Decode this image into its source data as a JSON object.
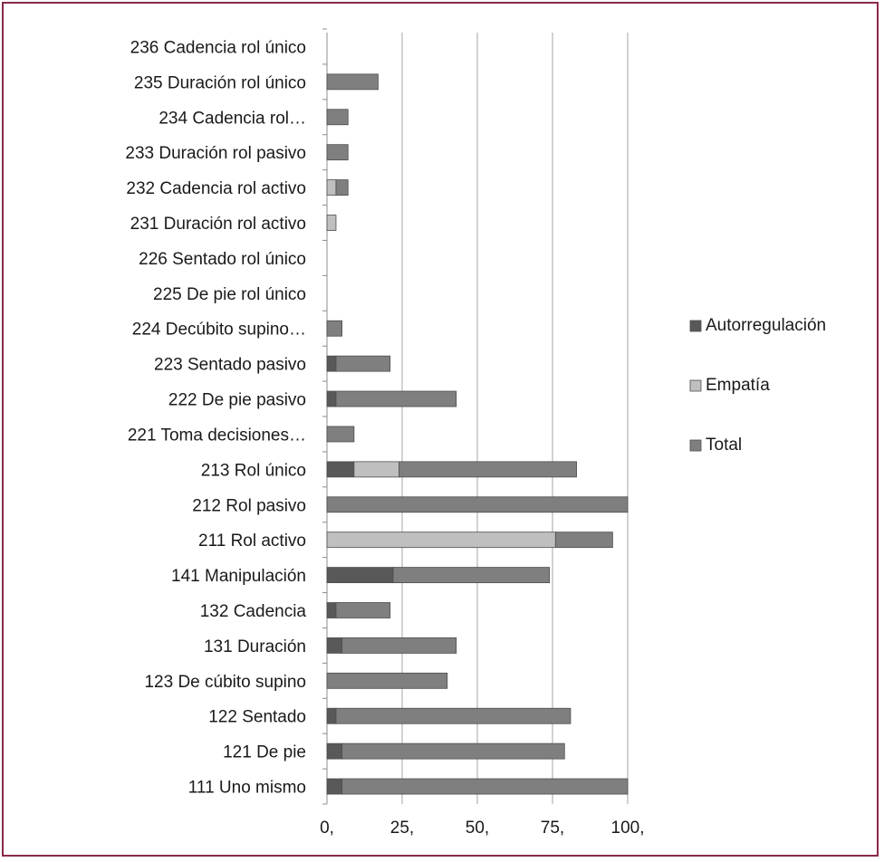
{
  "chart_data": {
    "type": "bar",
    "orientation": "horizontal",
    "stacked": true,
    "categories": [
      "111 Uno mismo",
      "121 De pie",
      "122 Sentado",
      "123 De cúbito supino",
      "131 Duración",
      "132 Cadencia",
      "141 Manipulación",
      "211 Rol activo",
      "212 Rol pasivo",
      "213 Rol único",
      "221 Toma decisiones…",
      "222 De pie pasivo",
      "223 Sentado pasivo",
      "224 Decúbito supino…",
      "225 De pie rol único",
      "226 Sentado rol único",
      "231 Duración rol activo",
      "232 Cadencia rol activo",
      "233 Duración rol pasivo",
      "234 Cadencia rol…",
      "235 Duración rol único",
      "236 Cadencia rol único"
    ],
    "series": [
      {
        "name": "Autorregulación",
        "color": "#595959",
        "values": [
          5,
          5,
          3,
          0,
          5,
          3,
          22,
          0,
          0,
          9,
          0,
          3,
          3,
          0,
          0,
          0,
          0,
          0,
          0,
          0,
          0,
          0
        ]
      },
      {
        "name": "Empatía",
        "color": "#bfbfbf",
        "values": [
          0,
          0,
          0,
          0,
          0,
          0,
          0,
          76,
          0,
          15,
          0,
          0,
          0,
          0,
          0,
          0,
          3,
          3,
          0,
          0,
          0,
          0
        ]
      },
      {
        "name": "Total",
        "color": "#7f7f7f",
        "values": [
          95,
          74,
          78,
          40,
          38,
          18,
          52,
          19,
          100,
          59,
          9,
          40,
          18,
          5,
          0,
          0,
          0,
          4,
          7,
          7,
          17,
          0
        ]
      }
    ],
    "x_ticks": [
      "0,",
      "25,",
      "50,",
      "75,",
      "100,"
    ],
    "xlim": [
      0,
      100
    ],
    "xlabel": "",
    "ylabel": "",
    "title": "",
    "grid": "vertical",
    "legend_position": "right"
  }
}
